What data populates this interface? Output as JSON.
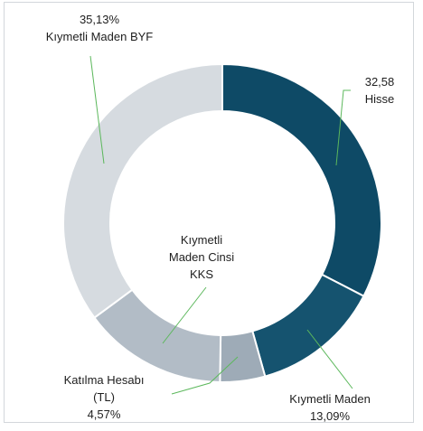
{
  "chart_data": {
    "type": "donut",
    "categories": [
      "Hisse",
      "Kıymetli Maden",
      "Katılma Hesabı (TL)",
      "Kıymetli Maden Cinsi KKS",
      "Kıymetli Maden BYF"
    ],
    "values": [
      32.58,
      13.09,
      4.57,
      14.63,
      35.13
    ],
    "value_labels": [
      "32,58",
      "13,09%",
      "4,57%",
      null,
      "35,13%"
    ],
    "colors": [
      "#0e4a66",
      "#15536f",
      "#9eabb7",
      "#b2bcc6",
      "#d6dbe0"
    ]
  }
}
